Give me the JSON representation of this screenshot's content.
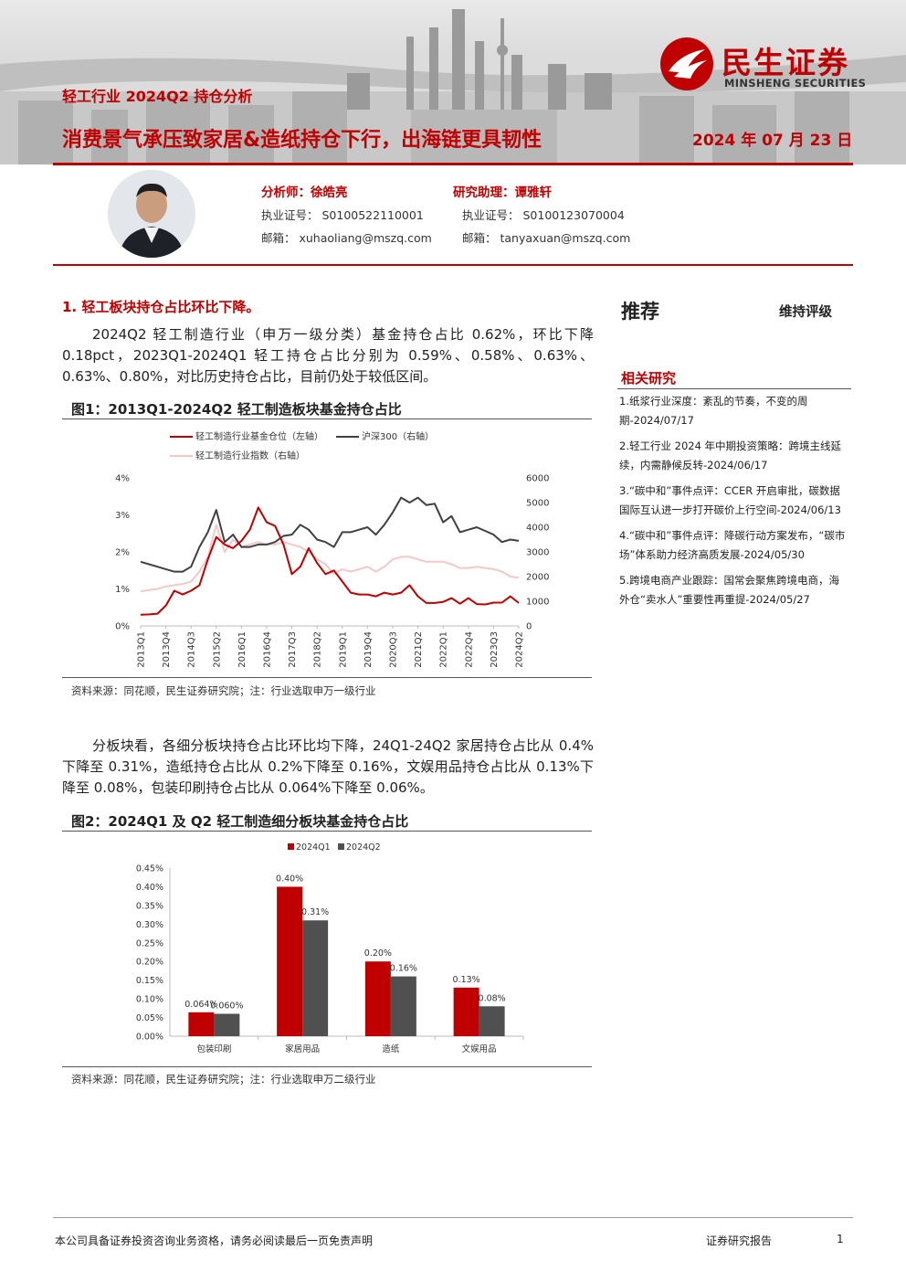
{
  "header": {
    "report_type": "轻工行业 2024Q2 持仓分析",
    "title": "消费景气承压致家居&造纸持仓下行，出海链更具韧性",
    "date": "2024 年 07 月 23 日",
    "brand_cn": "民生证券",
    "brand_en": "MINSHENG SECURITIES"
  },
  "analysts": {
    "analyst_label": "分析师：",
    "analyst_name": "徐皓亮",
    "analyst_cert": "执业证号：  S0100522110001",
    "analyst_email": "邮箱：  xuhaoliang@mszq.com",
    "assistant_label": "研究助理：",
    "assistant_name": "谭雅轩",
    "assistant_cert": "执业证号：  S0100123070004",
    "assistant_email": "邮箱：  tanyaxuan@mszq.com"
  },
  "section1": {
    "heading": "1.   轻工板块持仓占比环比下降。",
    "para1": "2024Q2 轻工制造行业（申万一级分类）基金持仓占比 0.62%，环比下降 0.18pct，2023Q1-2024Q1 轻工持仓占比分别为 0.59%、0.58%、0.63%、0.63%、0.80%，对比历史持仓占比，目前仍处于较低区间。",
    "para2": "分板块看，各细分板块持仓占比环比均下降，24Q1-24Q2 家居持仓占比从 0.4%下降至 0.31%，造纸持仓占比从 0.2%下降至 0.16%，文娱用品持仓占比从 0.13%下降至 0.08%，包装印刷持仓占比从 0.064%下降至 0.06%。"
  },
  "figure1": {
    "title": "图1：2013Q1-2024Q2 轻工制造板块基金持仓占比",
    "source": "资料来源：同花顺，民生证券研究院；注：行业选取申万一级行业"
  },
  "figure2": {
    "title": "图2：2024Q1 及 Q2 轻工制造细分板块基金持仓占比",
    "source": "资料来源：同花顺，民生证券研究院；注：行业选取申万二级行业"
  },
  "sidebar": {
    "rating": "推荐",
    "rating_note": "维持评级",
    "related_title": "相关研究",
    "items": [
      "1.纸浆行业深度：紊乱的节奏，不变的周期-2024/07/17",
      "2.轻工行业 2024 年中期投资策略：跨境主线延续，内需静候反转-2024/06/17",
      "3.“碳中和”事件点评：CCER 开启审批，碳数据国际互认进一步打开碳价上行空间-2024/06/13",
      "4.“碳中和”事件点评：降碳行动方案发布，“碳市场”体系助力经济高质发展-2024/05/30",
      "5.跨境电商产业跟踪：国常会聚焦跨境电商，海外仓“卖水人”重要性再重提-2024/05/27"
    ]
  },
  "footer": {
    "disclaimer": "本公司具备证券投资咨询业务资格，请务必阅读最后一页免责声明",
    "report_kind": "证券研究报告",
    "page": "1"
  },
  "colors": {
    "brand_red": "#c00000",
    "q2_gray": "#505050",
    "pink": "#f4c7c9",
    "dark": "#404040"
  },
  "chart_data": [
    {
      "type": "line",
      "legend": [
        "轻工制造行业基金仓位（左轴）",
        "沪深300（右轴）",
        "轻工制造行业指数（右轴）"
      ],
      "x": [
        "2013Q1",
        "2013Q2",
        "2013Q3",
        "2013Q4",
        "2014Q1",
        "2014Q2",
        "2014Q3",
        "2014Q4",
        "2015Q1",
        "2015Q2",
        "2015Q3",
        "2015Q4",
        "2016Q1",
        "2016Q2",
        "2016Q3",
        "2016Q4",
        "2017Q1",
        "2017Q2",
        "2017Q3",
        "2017Q4",
        "2018Q1",
        "2018Q2",
        "2018Q3",
        "2018Q4",
        "2019Q1",
        "2019Q2",
        "2019Q3",
        "2019Q4",
        "2020Q1",
        "2020Q2",
        "2020Q3",
        "2020Q4",
        "2021Q1",
        "2021Q2",
        "2021Q3",
        "2021Q4",
        "2022Q1",
        "2022Q2",
        "2022Q3",
        "2022Q4",
        "2023Q1",
        "2023Q2",
        "2023Q3",
        "2023Q4",
        "2024Q1",
        "2024Q2"
      ],
      "x_tick_labels": [
        "2013Q1",
        "2013Q4",
        "2014Q3",
        "2015Q2",
        "2016Q1",
        "2016Q4",
        "2017Q3",
        "2018Q2",
        "2019Q1",
        "2019Q4",
        "2020Q3",
        "2021Q2",
        "2022Q1",
        "2022Q4",
        "2023Q3",
        "2024Q2"
      ],
      "left_axis": {
        "ylim": [
          0,
          4
        ],
        "ticks": [
          "0%",
          "1%",
          "2%",
          "3%",
          "4%"
        ]
      },
      "right_axis": {
        "ylim": [
          0,
          6000
        ],
        "ticks": [
          "0",
          "1000",
          "2000",
          "3000",
          "4000",
          "5000",
          "6000"
        ]
      },
      "series": [
        {
          "name": "轻工制造行业基金仓位（左轴）",
          "axis": "left",
          "color": "#c00000",
          "values": [
            0.3,
            0.31,
            0.33,
            0.55,
            0.95,
            0.85,
            0.95,
            1.1,
            1.8,
            2.4,
            2.2,
            2.1,
            2.3,
            2.6,
            3.2,
            2.8,
            2.7,
            2.2,
            1.4,
            1.6,
            2.1,
            1.7,
            1.4,
            1.5,
            1.2,
            0.9,
            0.85,
            0.85,
            0.8,
            0.9,
            0.85,
            0.9,
            1.1,
            0.8,
            0.62,
            0.62,
            0.65,
            0.75,
            0.6,
            0.75,
            0.59,
            0.58,
            0.63,
            0.63,
            0.8,
            0.62
          ]
        },
        {
          "name": "沪深300（右轴）",
          "axis": "right",
          "color": "#404040",
          "values": [
            2600,
            2500,
            2400,
            2300,
            2200,
            2200,
            2400,
            3200,
            3800,
            4700,
            3400,
            3700,
            3200,
            3200,
            3300,
            3300,
            3400,
            3650,
            3700,
            4100,
            3900,
            3500,
            3400,
            3200,
            3800,
            3800,
            3900,
            4000,
            3700,
            4100,
            4600,
            5200,
            5000,
            5200,
            4900,
            4950,
            4200,
            4450,
            3800,
            3900,
            4000,
            3850,
            3700,
            3400,
            3500,
            3450
          ]
        },
        {
          "name": "轻工制造行业指数（右轴）",
          "axis": "right",
          "color": "#f4c7c9",
          "values": [
            1400,
            1450,
            1500,
            1600,
            1650,
            1700,
            1800,
            2200,
            2800,
            4100,
            3000,
            3500,
            3200,
            3300,
            3400,
            3300,
            3300,
            3400,
            3300,
            3200,
            3000,
            2700,
            2500,
            2100,
            2300,
            2200,
            2300,
            2400,
            2200,
            2400,
            2700,
            2800,
            2800,
            2700,
            2600,
            2600,
            2600,
            2500,
            2350,
            2350,
            2400,
            2350,
            2300,
            2200,
            2000,
            1950
          ]
        }
      ]
    },
    {
      "type": "bar",
      "legend": [
        "2024Q1",
        "2024Q2"
      ],
      "categories": [
        "包装印刷",
        "家居用品",
        "造纸",
        "文娱用品"
      ],
      "ylim": [
        0,
        0.45
      ],
      "y_ticks": [
        "0.00%",
        "0.05%",
        "0.10%",
        "0.15%",
        "0.20%",
        "0.25%",
        "0.30%",
        "0.35%",
        "0.40%",
        "0.45%"
      ],
      "series": [
        {
          "name": "2024Q1",
          "color": "#c00000",
          "values": [
            0.064,
            0.4,
            0.2,
            0.13
          ],
          "labels": [
            "0.064%",
            "0.40%",
            "0.20%",
            "0.13%"
          ]
        },
        {
          "name": "2024Q2",
          "color": "#505050",
          "values": [
            0.06,
            0.31,
            0.16,
            0.08
          ],
          "labels": [
            "0.060%",
            "0.31%",
            "0.16%",
            "0.08%"
          ]
        }
      ]
    }
  ]
}
